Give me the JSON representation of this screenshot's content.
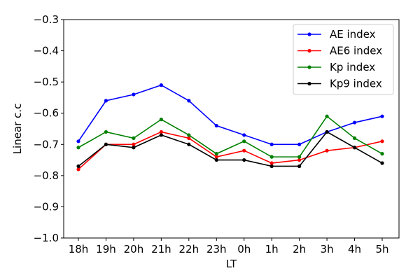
{
  "chart_data": {
    "type": "line",
    "title": "",
    "xlabel": "LT",
    "ylabel": "Linear c.c",
    "categories": [
      "18h",
      "19h",
      "20h",
      "21h",
      "22h",
      "23h",
      "0h",
      "1h",
      "2h",
      "3h",
      "4h",
      "5h"
    ],
    "ylim": [
      -1.0,
      -0.3
    ],
    "yticks": [
      -1.0,
      -0.9,
      -0.8,
      -0.7,
      -0.6,
      -0.5,
      -0.4,
      -0.3
    ],
    "ytick_labels": [
      "−1.0",
      "−0.9",
      "−0.8",
      "−0.7",
      "−0.6",
      "−0.5",
      "−0.4",
      "−0.3"
    ],
    "grid": false,
    "legend_position": "top-right",
    "series": [
      {
        "name": "AE index",
        "color": "#0000ff",
        "values": [
          -0.69,
          -0.56,
          -0.54,
          -0.51,
          -0.56,
          -0.64,
          -0.67,
          -0.7,
          -0.7,
          -0.66,
          -0.63,
          -0.61
        ]
      },
      {
        "name": "AE6 index",
        "color": "#ff0000",
        "values": [
          -0.78,
          -0.7,
          -0.7,
          -0.66,
          -0.68,
          -0.74,
          -0.72,
          -0.76,
          -0.75,
          -0.72,
          -0.71,
          -0.69
        ]
      },
      {
        "name": "Kp index",
        "color": "#008000",
        "values": [
          -0.71,
          -0.66,
          -0.68,
          -0.62,
          -0.67,
          -0.73,
          -0.69,
          -0.74,
          -0.74,
          -0.61,
          -0.68,
          -0.73
        ]
      },
      {
        "name": "Kp9 index",
        "color": "#000000",
        "values": [
          -0.77,
          -0.7,
          -0.71,
          -0.67,
          -0.7,
          -0.75,
          -0.75,
          -0.77,
          -0.77,
          -0.66,
          -0.71,
          -0.76
        ]
      }
    ]
  }
}
